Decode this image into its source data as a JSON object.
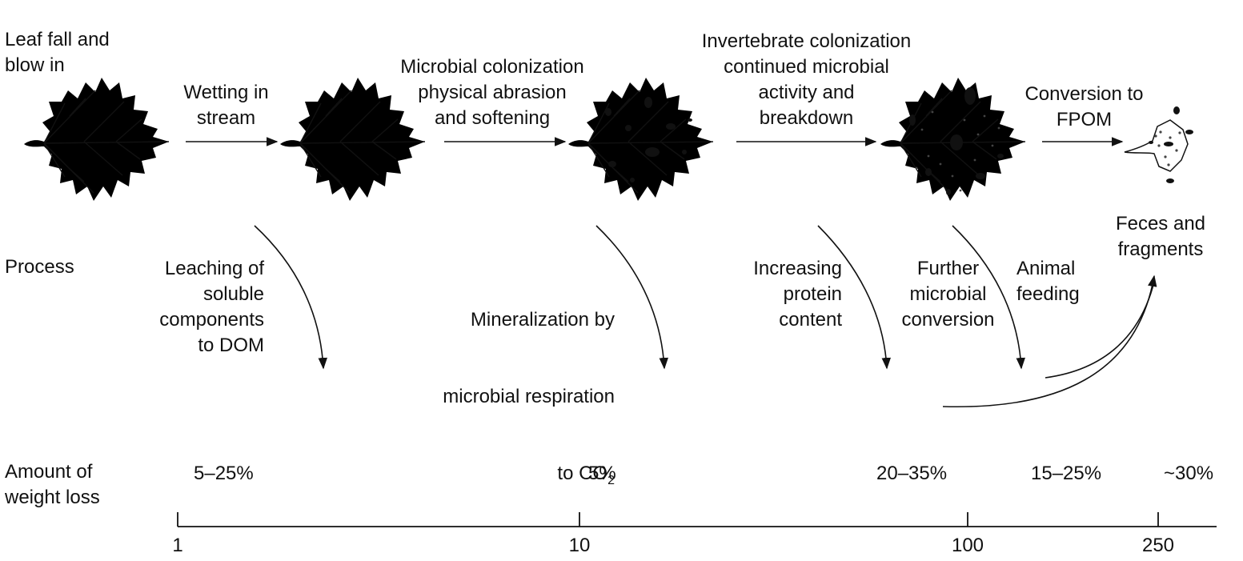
{
  "stages": {
    "s1_label": "Leaf fall and\nblow in",
    "s2_label": "Wetting in\nstream",
    "s3_label": "Microbial colonization\nphysical abrasion\nand softening",
    "s4_label": "Invertebrate colonization\ncontinued microbial\nactivity and\nbreakdown",
    "s5_label": "Conversion to\nFPOM"
  },
  "process": {
    "row_label": "Process",
    "leaching": "Leaching of\nsoluble\ncomponents\nto DOM",
    "mineralization_line1": "Mineralization by",
    "mineralization_line2": "microbial respiration",
    "mineralization_line3_prefix": "to CO",
    "mineralization_subscript": "2",
    "protein": "Increasing\nprotein\ncontent",
    "further": "Further\nmicrobial\nconversion",
    "animal": "Animal\nfeeding",
    "feces": "Feces and\nfragments"
  },
  "weight_loss": {
    "row_label": "Amount of\nweight loss",
    "values": [
      "5–25%",
      "5%",
      "20–35%",
      "15–25%",
      "~30%"
    ]
  },
  "axis": {
    "ticks": [
      "1",
      "10",
      "100",
      "250"
    ]
  },
  "icons": [
    "leaf-intact-icon",
    "leaf-wet-icon",
    "leaf-colonized-icon",
    "leaf-fragmented-icon",
    "fpom-particles-icon"
  ]
}
